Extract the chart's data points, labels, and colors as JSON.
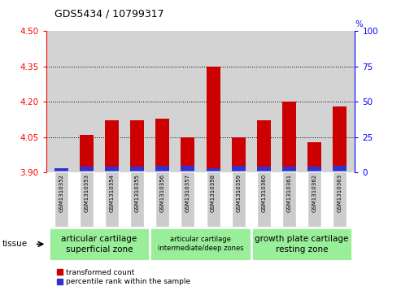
{
  "title": "GDS5434 / 10799317",
  "samples": [
    "GSM1310352",
    "GSM1310353",
    "GSM1310354",
    "GSM1310355",
    "GSM1310356",
    "GSM1310357",
    "GSM1310358",
    "GSM1310359",
    "GSM1310360",
    "GSM1310361",
    "GSM1310362",
    "GSM1310363"
  ],
  "red_values": [
    3.92,
    4.06,
    4.12,
    4.12,
    4.13,
    4.05,
    4.35,
    4.05,
    4.12,
    4.2,
    4.03,
    4.18
  ],
  "blue_percentile": [
    3,
    4,
    4,
    4,
    5,
    5,
    3,
    5,
    4,
    4,
    4,
    5
  ],
  "y_min": 3.9,
  "y_max": 4.5,
  "y_ticks": [
    3.9,
    4.05,
    4.2,
    4.35,
    4.5
  ],
  "y2_ticks": [
    0,
    25,
    50,
    75,
    100
  ],
  "bar_width": 0.55,
  "red_color": "#cc0000",
  "blue_color": "#3333cc",
  "plot_bg_color": "#d3d3d3",
  "sample_box_color": "#cccccc",
  "tissue_group_color": "#99ee99",
  "tissue_group_border": "#ffffff",
  "legend_red": "transformed count",
  "legend_blue": "percentile rank within the sample",
  "groups": [
    {
      "label": "articular cartilage\nsuperficial zone",
      "start": 0,
      "end": 4,
      "fontsize": 7.5
    },
    {
      "label": "articular cartilage\nintermediate/deep zones",
      "start": 4,
      "end": 8,
      "fontsize": 6
    },
    {
      "label": "growth plate cartilage\nresting zone",
      "start": 8,
      "end": 12,
      "fontsize": 7.5
    }
  ]
}
